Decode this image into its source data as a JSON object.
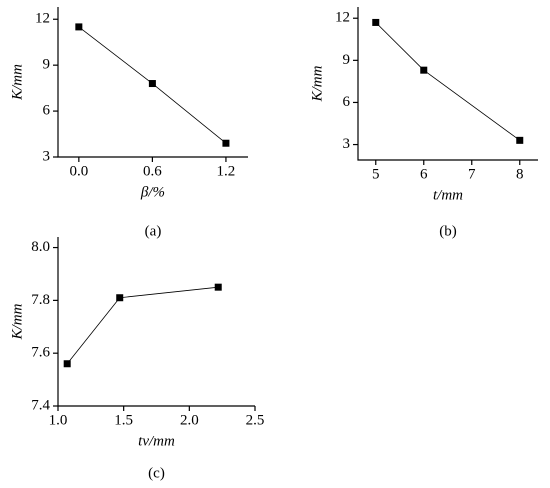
{
  "chart_data": [
    {
      "type": "line",
      "caption": "(a)",
      "x_label": "β/%",
      "y_label": "K/mm",
      "x": [
        0,
        0.6,
        1.2
      ],
      "series": [
        {
          "color": "#000000",
          "values": [
            11.5,
            7.8,
            3.9
          ]
        }
      ],
      "xlim": [
        -0.17,
        1.38
      ],
      "xticks": [
        {
          "value": 0,
          "label": "0.0"
        },
        0.6,
        1.2
      ],
      "ylim": [
        3,
        12.8
      ],
      "yticks": [
        3,
        6,
        9,
        12
      ]
    },
    {
      "type": "line",
      "caption": "(b)",
      "x_label": "t/mm",
      "y_label": "K/mm",
      "x": [
        5,
        6,
        8
      ],
      "series": [
        {
          "color": "#000000",
          "values": [
            11.7,
            8.3,
            3.3
          ]
        }
      ],
      "xlim": [
        4.63,
        8.38
      ],
      "xticks": [
        5,
        6,
        7,
        8
      ],
      "ylim": [
        1.9,
        12.8
      ],
      "yticks": [
        3,
        6,
        9,
        12
      ]
    },
    {
      "type": "line",
      "caption": "(c)",
      "x_label": "tv/mm",
      "y_label": "K/mm",
      "x": [
        1.07,
        1.47,
        2.22
      ],
      "series": [
        {
          "color": "#000000",
          "values": [
            7.56,
            7.81,
            7.85
          ]
        }
      ],
      "xlim": [
        1.0,
        2.5
      ],
      "xticks": [
        {
          "value": 1,
          "label": "1.0"
        },
        1.5,
        {
          "value": 2,
          "label": "2.0"
        },
        2.5
      ],
      "ylim": [
        7.4,
        8.04
      ],
      "yticks": [
        7.4,
        7.6,
        7.8,
        {
          "value": 8,
          "label": "8.0"
        }
      ]
    }
  ]
}
